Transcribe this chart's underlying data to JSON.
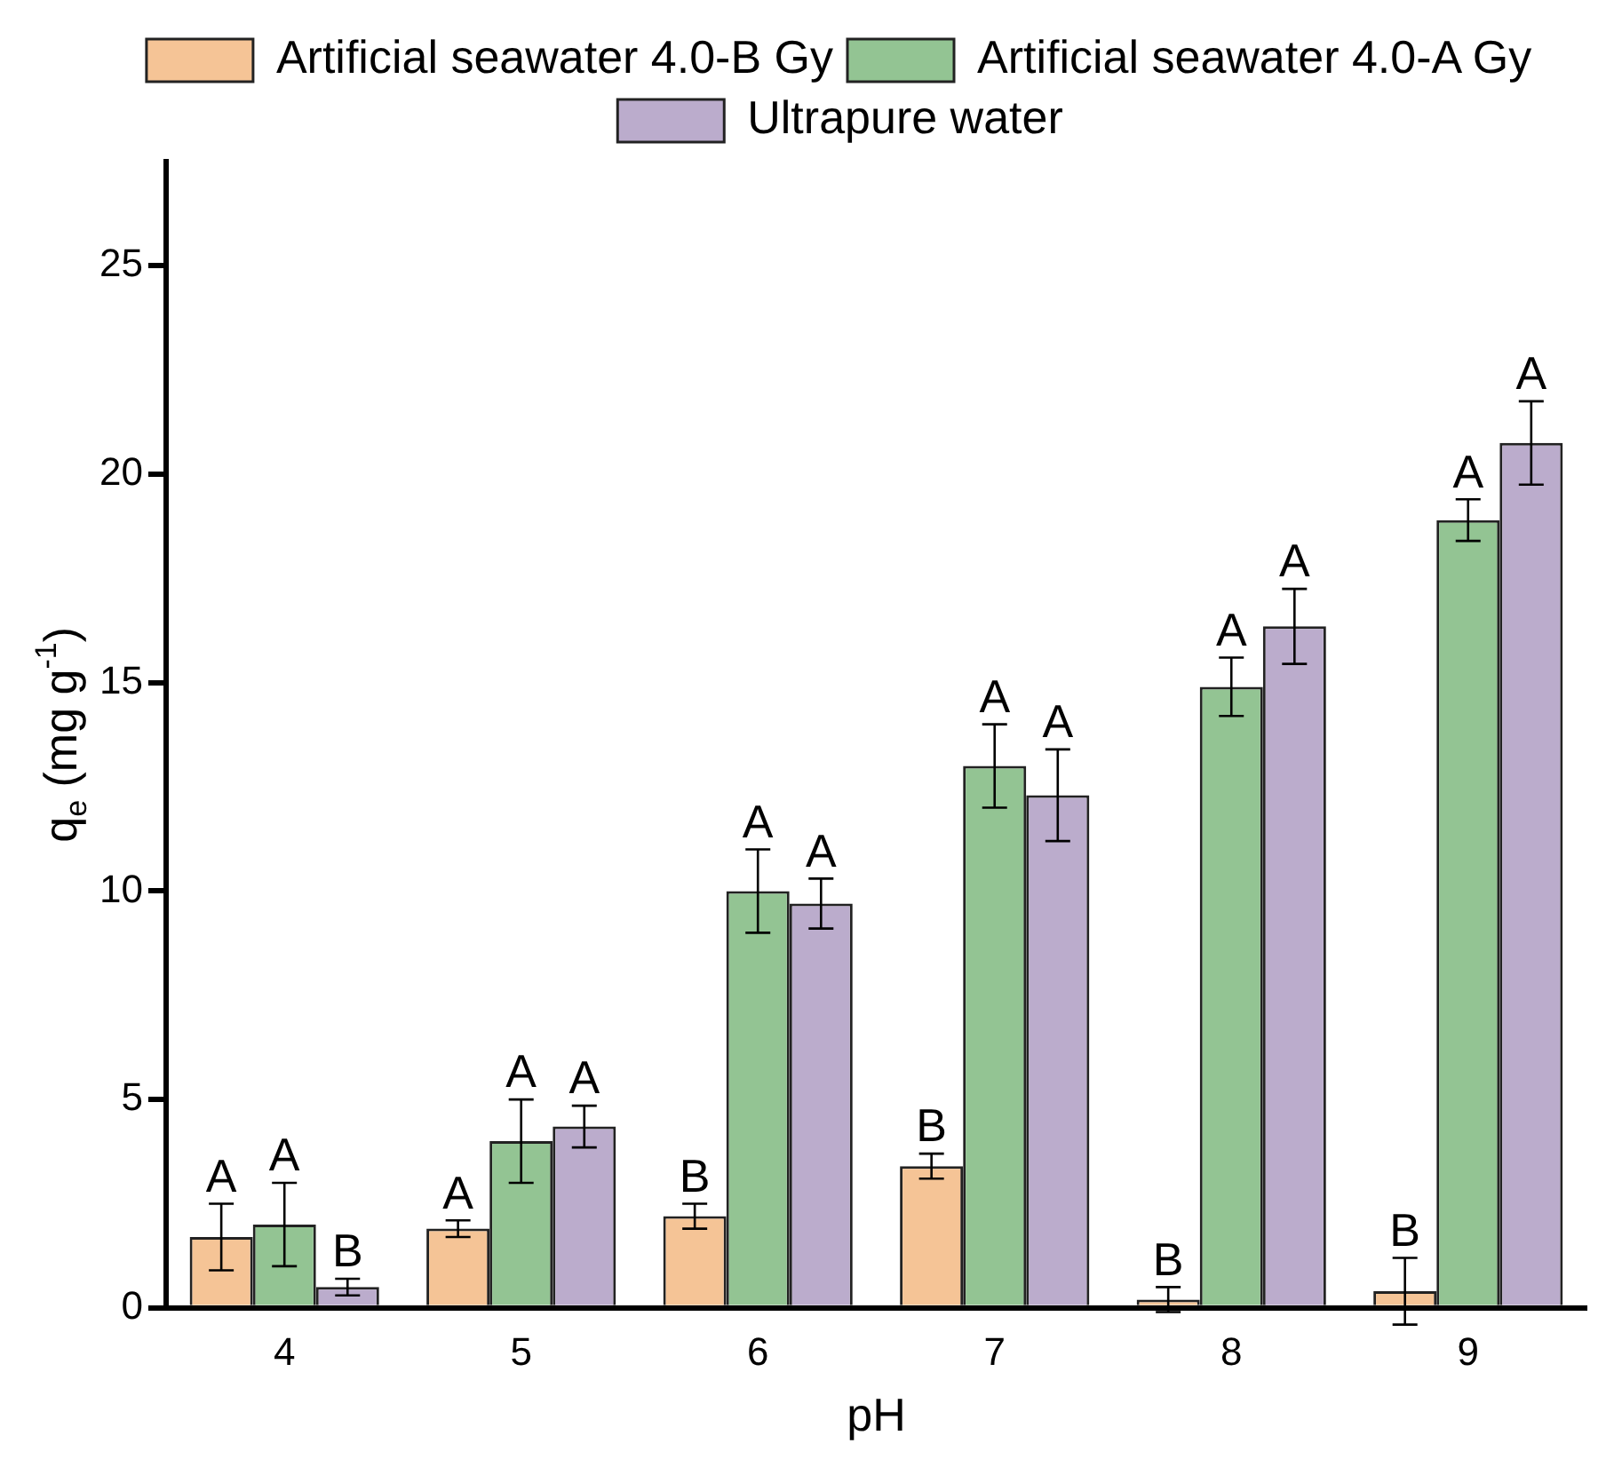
{
  "chart_data": {
    "type": "bar",
    "xlabel": "pH",
    "ylabel": "q$_{e}$ (mg g$^{-1}$)",
    "categories": [
      "4",
      "5",
      "6",
      "7",
      "8",
      "9"
    ],
    "series": [
      {
        "name": "Artificial seawater 4.0-B Gy",
        "color": "#f5c496",
        "values": [
          1.7,
          1.9,
          2.2,
          3.4,
          0.2,
          0.4
        ],
        "errors": [
          0.8,
          0.2,
          0.3,
          0.3,
          0.3,
          0.8
        ]
      },
      {
        "name": "Artificial seawater 4.0-A Gy",
        "color": "#93c493",
        "values": [
          2.0,
          4.0,
          10.0,
          13.0,
          14.9,
          18.9
        ],
        "errors": [
          1.0,
          1.0,
          1.0,
          1.0,
          0.7,
          0.5
        ]
      },
      {
        "name": "Ultrapure water",
        "color": "#bbaccc",
        "values": [
          0.5,
          4.35,
          9.7,
          12.3,
          16.35,
          20.75
        ],
        "errors": [
          0.2,
          0.5,
          0.6,
          1.1,
          0.9,
          1.0
        ]
      }
    ],
    "annotations": [
      "A",
      "A",
      "B",
      "B",
      "B",
      "B",
      "A",
      "A",
      "A",
      "A",
      "A",
      "A",
      "B",
      "A",
      "A",
      "A",
      "A",
      "A"
    ],
    "ylim": [
      0,
      27.5
    ],
    "yticks": [
      0,
      5,
      10,
      15,
      20,
      25
    ],
    "grid": false,
    "legend": "top"
  }
}
